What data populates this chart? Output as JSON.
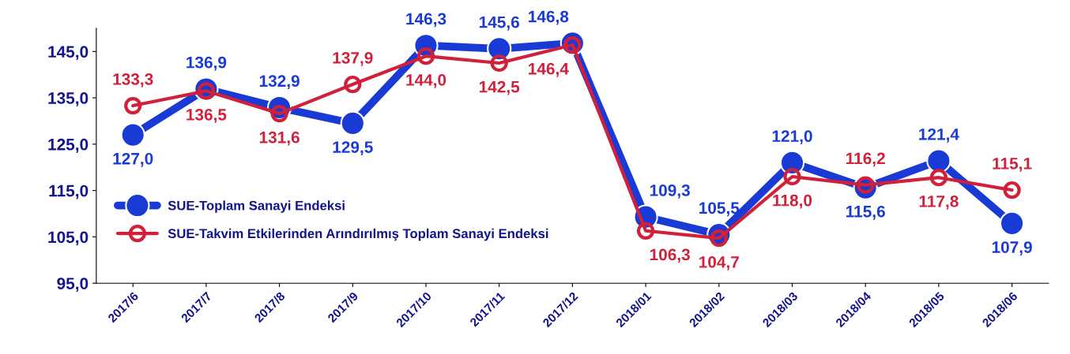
{
  "chart_data": {
    "type": "line",
    "categories": [
      "2017/6",
      "2017/7",
      "2017/8",
      "2017/9",
      "2017/10",
      "2017/11",
      "2017/12",
      "2018/01",
      "2018/02",
      "2018/03",
      "2018/04",
      "2018/05",
      "2018/06"
    ],
    "series": [
      {
        "name": "SUE-Toplam Sanayi Endeksi",
        "color": "#1a3ad6",
        "values": [
          127.0,
          136.9,
          132.9,
          129.5,
          146.3,
          145.6,
          146.8,
          109.3,
          105.5,
          121.0,
          115.6,
          121.4,
          107.9
        ],
        "value_labels": [
          "127,0",
          "136,9",
          "132,9",
          "129,5",
          "146,3",
          "145,6",
          "146,8",
          "109,3",
          "105,5",
          "121,0",
          "115,6",
          "121,4",
          "107,9"
        ]
      },
      {
        "name": "SUE-Takvim Etkilerinden Arındırılmış Toplam Sanayi Endeksi",
        "color": "#d0203a",
        "values": [
          133.3,
          136.5,
          131.6,
          137.9,
          144.0,
          142.5,
          146.4,
          106.3,
          104.7,
          118.0,
          116.2,
          117.8,
          115.1
        ],
        "value_labels": [
          "133,3",
          "136,5",
          "131,6",
          "137,9",
          "144,0",
          "142,5",
          "146,4",
          "106,3",
          "104,7",
          "118,0",
          "116,2",
          "117,8",
          "115,1"
        ]
      }
    ],
    "ylim": [
      95,
      150
    ],
    "yticks": [
      {
        "value": 95,
        "label": "95,0"
      },
      {
        "value": 105,
        "label": "105,0"
      },
      {
        "value": 115,
        "label": "115,0"
      },
      {
        "value": 125,
        "label": "125,0"
      },
      {
        "value": 135,
        "label": "135,0"
      },
      {
        "value": 145,
        "label": "145,0"
      }
    ],
    "grid": false,
    "legend": "bottom left",
    "marker": "circle",
    "line_style": "solid"
  }
}
